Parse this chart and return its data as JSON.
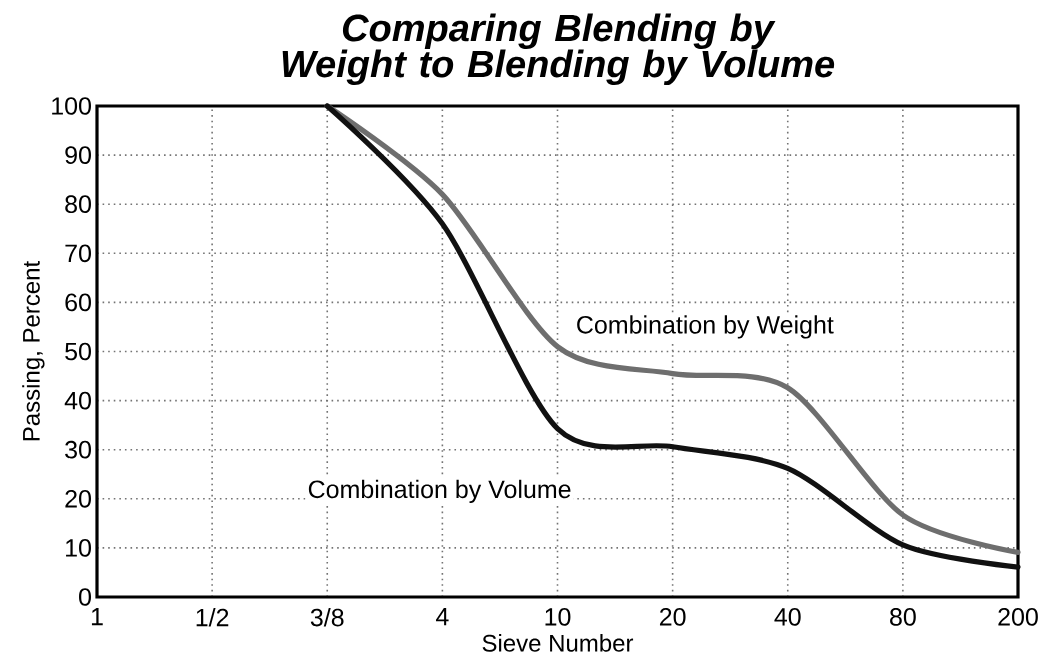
{
  "chart_data": {
    "type": "line",
    "title": "Comparing Blending by Weight to Blending by Volume",
    "xlabel": "Sieve Number",
    "ylabel": "Passing, Percent",
    "categories": [
      "1",
      "1/2",
      "3/8",
      "4",
      "10",
      "20",
      "40",
      "80",
      "200"
    ],
    "ylim": [
      0,
      100
    ],
    "yticks": [
      0,
      10,
      20,
      30,
      40,
      50,
      60,
      70,
      80,
      90,
      100
    ],
    "grid": true,
    "marker": "none",
    "line_style": "solid",
    "series": [
      {
        "name": "Combination by Weight",
        "color": "#6e6e6e",
        "values": [
          null,
          null,
          100,
          82,
          51,
          45.5,
          42.6,
          16.7,
          9.1
        ]
      },
      {
        "name": "Combination by Volume",
        "color": "#111111",
        "values": [
          null,
          null,
          100,
          76,
          34.3,
          30.6,
          26.2,
          10.6,
          6.1
        ]
      }
    ]
  }
}
